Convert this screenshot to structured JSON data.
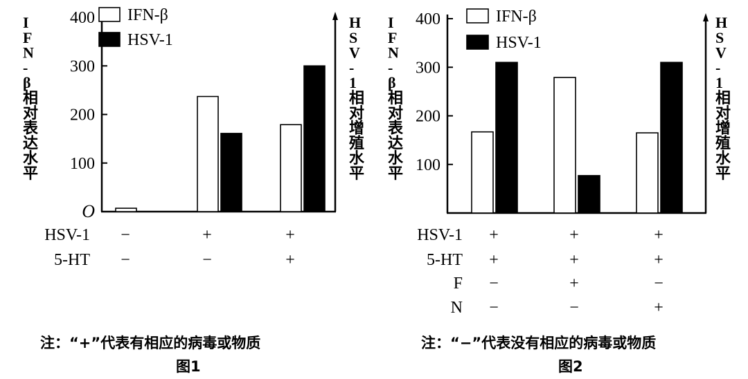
{
  "chart_data": [
    {
      "type": "bar",
      "figure_label": "图1",
      "note": "注：“+”代表有相应的病毒或物质",
      "left_axis_label": "IFN-β相对表达水平",
      "right_axis_label": "HSV-1相对增殖水平",
      "yticks": [
        "O",
        "100",
        "200",
        "300",
        "400"
      ],
      "ylim": [
        0,
        400
      ],
      "legend_position": "top-left",
      "series": [
        {
          "name": "IFN-β",
          "color": "#ffffff",
          "values": [
            7,
            237,
            179
          ]
        },
        {
          "name": "HSV-1",
          "color": "#000000",
          "values": [
            0,
            161,
            300
          ]
        }
      ],
      "conditions": [
        {
          "name": "HSV-1",
          "values": [
            "−",
            "+",
            "+"
          ]
        },
        {
          "name": "5-HT",
          "values": [
            "−",
            "−",
            "+"
          ]
        }
      ]
    },
    {
      "type": "bar",
      "figure_label": "图2",
      "note": "注：“−”代表没有相应的病毒或物质",
      "left_axis_label": "IFN-β相对表达水平",
      "right_axis_label": "HSV-1相对增殖水平",
      "yticks": [
        "100",
        "200",
        "300",
        "400"
      ],
      "ylim": [
        0,
        400
      ],
      "legend_position": "top-left",
      "series": [
        {
          "name": "IFN-β",
          "color": "#ffffff",
          "values": [
            167,
            279,
            165
          ]
        },
        {
          "name": "HSV-1",
          "color": "#000000",
          "values": [
            310,
            77,
            310
          ]
        }
      ],
      "conditions": [
        {
          "name": "HSV-1",
          "values": [
            "+",
            "+",
            "+"
          ]
        },
        {
          "name": "5-HT",
          "values": [
            "+",
            "+",
            "+"
          ]
        },
        {
          "name": "F",
          "values": [
            "−",
            "+",
            "−"
          ]
        },
        {
          "name": "N",
          "values": [
            "−",
            "−",
            "+"
          ]
        }
      ]
    }
  ]
}
